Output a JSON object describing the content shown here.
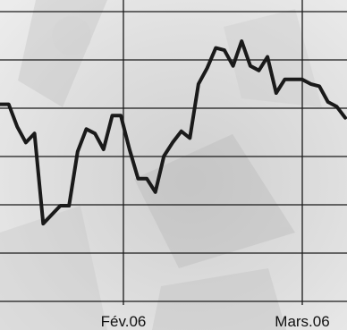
{
  "chart_data": {
    "type": "line",
    "title": "",
    "xlabel": "",
    "ylabel": "",
    "x_tick_labels": [
      "Fév.06",
      "Mars.06"
    ],
    "grid": true,
    "legend": "none",
    "y_axis_labels_shown": false,
    "series": [
      {
        "values": [
          72,
          72,
          62,
          55,
          59,
          19,
          23,
          27,
          27,
          51,
          61,
          59,
          52,
          67,
          67,
          52,
          39,
          39,
          33,
          49,
          55,
          60,
          57,
          81,
          88,
          97,
          96,
          89,
          100,
          89,
          87,
          93,
          77,
          83,
          83,
          83,
          81,
          80,
          73,
          71,
          66
        ]
      }
    ],
    "ylim": [
      0,
      100
    ]
  },
  "colors": {
    "line": "#1a1a1a",
    "grid": "#1a1a1a",
    "background": "#e3e3e3"
  }
}
